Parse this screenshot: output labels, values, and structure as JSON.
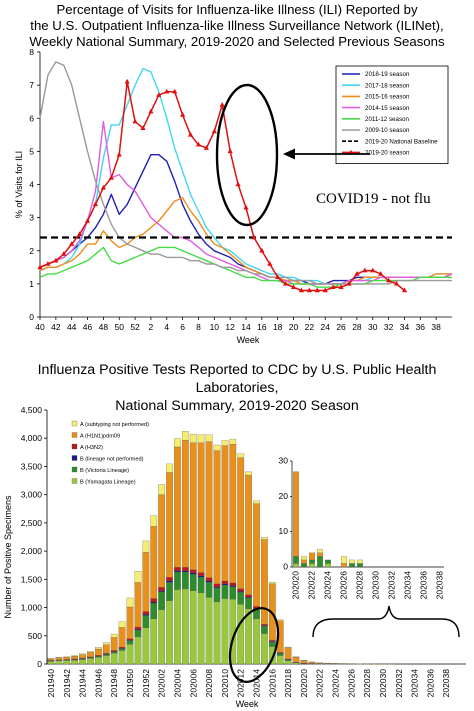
{
  "titles": {
    "top_lines": [
      "Percentage of Visits for Influenza-like Illness (ILI) Reported by",
      "the U.S. Outpatient Influenza-like Illness Surveillance Network (ILINet),",
      "Weekly National Summary, 2019-2020 and Selected Previous Seasons"
    ],
    "bottom_lines": [
      "Influenza Positive Tests Reported to CDC by U.S. Public Health Laboratories,",
      "National Summary, 2019-2020 Season"
    ]
  },
  "chart_data": [
    {
      "type": "line",
      "xlabel": "Week",
      "ylabel": "% of Visits for ILI",
      "ylim": [
        0,
        8
      ],
      "yticks": [
        0,
        1,
        2,
        3,
        4,
        5,
        6,
        7,
        8
      ],
      "x_tick_labels": [
        "40",
        "42",
        "44",
        "46",
        "48",
        "50",
        "52",
        "2",
        "4",
        "6",
        "8",
        "10",
        "12",
        "14",
        "16",
        "18",
        "20",
        "22",
        "24",
        "26",
        "28",
        "30",
        "32",
        "34",
        "36",
        "38"
      ],
      "grid": false,
      "legend_position": "top-right",
      "annotation": "COVID19 - not flu",
      "series": [
        {
          "name": "2018-19 season",
          "color": "#1f1fb4",
          "values": [
            1.5,
            1.6,
            1.7,
            1.8,
            2.0,
            2.2,
            2.4,
            2.7,
            3.1,
            3.7,
            3.1,
            3.4,
            3.9,
            4.4,
            4.9,
            4.9,
            4.7,
            4.1,
            3.4,
            2.9,
            2.5,
            2.2,
            2.0,
            1.9,
            1.8,
            1.6,
            1.5,
            1.4,
            1.3,
            1.2,
            1.2,
            1.1,
            1.1,
            1.1,
            1.0,
            1.0,
            1.0,
            1.1,
            1.1,
            1.1,
            1.2,
            1.2,
            1.2,
            1.2,
            1.2,
            1.2,
            1.2,
            1.2,
            1.2,
            1.2,
            1.2,
            1.2,
            1.3
          ]
        },
        {
          "name": "2017-18 season",
          "color": "#40d8f0",
          "values": [
            1.4,
            1.5,
            1.5,
            1.6,
            1.8,
            2.2,
            2.9,
            3.4,
            4.8,
            5.8,
            5.8,
            6.4,
            7.0,
            7.5,
            7.4,
            6.8,
            6.0,
            5.1,
            4.4,
            3.7,
            3.2,
            2.7,
            2.4,
            2.1,
            2.0,
            1.8,
            1.6,
            1.5,
            1.4,
            1.3,
            1.3,
            1.2,
            1.2,
            1.1,
            1.1,
            1.1,
            1.0,
            1.0,
            1.0,
            1.1,
            1.1,
            1.1,
            1.2,
            1.2,
            1.2,
            1.2,
            1.2,
            1.2,
            1.2,
            1.2,
            1.3,
            1.3,
            1.3
          ]
        },
        {
          "name": "2015-16 season",
          "color": "#f08c1c",
          "values": [
            1.4,
            1.5,
            1.5,
            1.6,
            1.7,
            1.9,
            2.2,
            2.2,
            2.6,
            2.3,
            2.1,
            2.2,
            2.4,
            2.5,
            2.7,
            2.9,
            3.2,
            3.5,
            3.6,
            3.2,
            2.9,
            2.5,
            2.2,
            2.1,
            1.9,
            1.7,
            1.5,
            1.4,
            1.3,
            1.2,
            1.2,
            1.1,
            1.1,
            1.0,
            1.0,
            1.0,
            1.0,
            1.0,
            1.0,
            1.1,
            1.1,
            1.2,
            1.2,
            1.2,
            1.2,
            1.2,
            1.2,
            1.2,
            1.2,
            1.2,
            1.3,
            1.3,
            1.3
          ]
        },
        {
          "name": "2014-15 season",
          "color": "#e05ce0",
          "values": [
            1.5,
            1.6,
            1.7,
            1.8,
            2.0,
            2.3,
            2.9,
            3.8,
            5.9,
            4.2,
            4.3,
            4.0,
            3.8,
            3.4,
            3.0,
            2.8,
            2.6,
            2.4,
            2.4,
            2.3,
            2.1,
            1.9,
            1.8,
            1.7,
            1.6,
            1.5,
            1.4,
            1.3,
            1.2,
            1.1,
            1.1,
            1.1,
            1.0,
            1.0,
            1.0,
            1.0,
            1.0,
            1.0,
            1.0,
            1.1,
            1.1,
            1.1,
            1.1,
            1.2,
            1.2,
            1.2,
            1.2,
            1.2,
            1.2,
            1.2,
            1.2,
            1.2,
            1.3
          ]
        },
        {
          "name": "2011-12 season",
          "color": "#44dd44",
          "values": [
            1.2,
            1.3,
            1.3,
            1.4,
            1.5,
            1.6,
            1.7,
            1.9,
            2.1,
            1.7,
            1.6,
            1.7,
            1.8,
            1.9,
            2.0,
            2.1,
            2.1,
            2.1,
            2.0,
            1.9,
            1.8,
            1.7,
            1.6,
            1.5,
            1.4,
            1.3,
            1.2,
            1.2,
            1.1,
            1.1,
            1.1,
            1.0,
            1.0,
            1.0,
            1.0,
            0.9,
            0.9,
            0.9,
            1.0,
            1.0,
            1.0,
            1.0,
            1.1,
            1.1,
            1.1,
            1.1,
            1.1,
            1.1,
            1.2,
            1.2,
            1.2,
            1.2,
            1.2
          ]
        },
        {
          "name": "2009-10 season",
          "color": "#999999",
          "values": [
            6.0,
            7.3,
            7.7,
            7.6,
            7.0,
            6.0,
            5.0,
            4.1,
            3.4,
            2.8,
            2.4,
            2.2,
            2.1,
            2.0,
            1.9,
            1.9,
            1.8,
            1.8,
            1.8,
            1.7,
            1.7,
            1.6,
            1.6,
            1.5,
            1.5,
            1.4,
            1.4,
            1.3,
            1.3,
            1.2,
            1.2,
            1.2,
            1.1,
            1.1,
            1.1,
            1.0,
            1.0,
            1.0,
            1.0,
            1.0,
            1.0,
            1.0,
            1.0,
            1.0,
            1.0,
            1.1,
            1.1,
            1.1,
            1.1,
            1.1,
            1.1,
            1.1,
            1.1
          ]
        },
        {
          "name": "2019-20 National Baseline",
          "color": "#000000",
          "dashed": true,
          "values": [
            2.4,
            2.4,
            2.4,
            2.4,
            2.4,
            2.4,
            2.4,
            2.4,
            2.4,
            2.4,
            2.4,
            2.4,
            2.4,
            2.4,
            2.4,
            2.4,
            2.4,
            2.4,
            2.4,
            2.4,
            2.4,
            2.4,
            2.4,
            2.4,
            2.4,
            2.4,
            2.4,
            2.4,
            2.4,
            2.4,
            2.4,
            2.4,
            2.4,
            2.4,
            2.4,
            2.4,
            2.4,
            2.4,
            2.4,
            2.4,
            2.4,
            2.4,
            2.4,
            2.4,
            2.4,
            2.4,
            2.4,
            2.4,
            2.4,
            2.4,
            2.4,
            2.4,
            2.4
          ]
        },
        {
          "name": "2019-20 season",
          "color": "#e01010",
          "markers": true,
          "values": [
            1.5,
            1.6,
            1.7,
            1.9,
            2.2,
            2.5,
            2.9,
            3.4,
            3.9,
            4.2,
            4.9,
            7.1,
            5.9,
            5.7,
            6.2,
            6.7,
            6.8,
            6.8,
            6.1,
            5.5,
            5.2,
            5.1,
            5.6,
            6.4,
            5.0,
            4.0,
            3.3,
            2.4,
            2.0,
            1.6,
            1.2,
            1.0,
            0.9,
            0.8,
            0.8,
            0.8,
            0.8,
            0.9,
            0.9,
            1.0,
            1.3,
            1.4,
            1.4,
            1.3,
            1.1,
            1.0,
            0.8
          ]
        }
      ]
    },
    {
      "type": "bar",
      "stacked": true,
      "xlabel": "Week",
      "ylabel": "Number of Positive Specimens",
      "ylim": [
        0,
        4500
      ],
      "yticks": [
        0,
        500,
        1000,
        1500,
        2000,
        2500,
        3000,
        3500,
        4000,
        4500
      ],
      "yticks_text": [
        "0",
        "500",
        "1,000",
        "1,500",
        "2,000",
        "2,500",
        "3,000",
        "3,500",
        "4,000",
        "4,500"
      ],
      "x_tick_labels": [
        "201940",
        "201942",
        "201944",
        "201946",
        "201948",
        "201950",
        "201952",
        "202002",
        "202004",
        "202006",
        "202008",
        "202010",
        "202012",
        "202014",
        "202016",
        "202018",
        "202020",
        "202022",
        "202024",
        "202026",
        "202028",
        "202030",
        "202032",
        "202034",
        "202036",
        "202038"
      ],
      "legend_position": "top-left",
      "series": [
        {
          "name": "B (Yamagata Lineage)",
          "color": "#9ac83c",
          "values": [
            50,
            60,
            65,
            70,
            80,
            100,
            120,
            150,
            190,
            240,
            350,
            480,
            640,
            800,
            960,
            1120,
            1320,
            1330,
            1300,
            1260,
            1180,
            1100,
            1160,
            1150,
            1060,
            980,
            800,
            540,
            310,
            150,
            60,
            20,
            10,
            5,
            4,
            3,
            2,
            2,
            2,
            1,
            1,
            0,
            0,
            0,
            0,
            0,
            0,
            0,
            0,
            0,
            0,
            0,
            0
          ]
        },
        {
          "name": "B (Victoria Lineage)",
          "color": "#2e8b2e",
          "values": [
            5,
            5,
            5,
            5,
            10,
            10,
            15,
            20,
            25,
            35,
            60,
            120,
            220,
            280,
            320,
            330,
            310,
            300,
            290,
            280,
            270,
            250,
            240,
            220,
            210,
            190,
            170,
            130,
            80,
            40,
            20,
            8,
            4,
            2,
            1,
            1,
            1,
            1,
            1,
            0,
            0,
            0,
            0,
            0,
            0,
            0,
            0,
            0,
            0,
            0,
            0,
            0,
            0
          ]
        },
        {
          "name": "B (lineage not performed)",
          "color": "#1a1a80",
          "values": [
            5,
            5,
            5,
            5,
            5,
            5,
            5,
            5,
            5,
            5,
            10,
            15,
            20,
            20,
            20,
            25,
            25,
            25,
            25,
            25,
            25,
            20,
            20,
            20,
            20,
            15,
            15,
            10,
            10,
            5,
            5,
            2,
            1,
            1,
            0,
            0,
            0,
            0,
            0,
            0,
            0,
            0,
            0,
            0,
            0,
            0,
            0,
            0,
            0,
            0,
            0,
            0,
            0
          ]
        },
        {
          "name": "A (H3N2)",
          "color": "#c01818",
          "values": [
            5,
            5,
            5,
            10,
            10,
            10,
            15,
            15,
            20,
            20,
            30,
            40,
            50,
            60,
            60,
            60,
            60,
            60,
            55,
            55,
            55,
            50,
            50,
            45,
            45,
            40,
            35,
            25,
            20,
            10,
            5,
            3,
            2,
            1,
            0,
            0,
            0,
            0,
            0,
            0,
            0,
            0,
            0,
            0,
            0,
            0,
            0,
            0,
            0,
            0,
            0,
            0,
            0
          ]
        },
        {
          "name": "A (H1N1)pdm09",
          "color": "#e8901c",
          "values": [
            25,
            35,
            40,
            50,
            60,
            80,
            110,
            150,
            230,
            350,
            560,
            790,
            1050,
            1280,
            1640,
            1860,
            2130,
            2250,
            2250,
            2300,
            2410,
            2360,
            2400,
            2460,
            2320,
            2120,
            1820,
            1500,
            1000,
            560,
            200,
            90,
            45,
            25,
            15,
            10,
            8,
            6,
            4,
            3,
            2,
            2,
            1,
            1,
            0,
            0,
            0,
            0,
            0,
            0,
            0,
            0,
            0
          ]
        },
        {
          "name": "A (subtyping not performed)",
          "color": "#f5ec70",
          "values": [
            10,
            10,
            10,
            10,
            20,
            20,
            30,
            40,
            60,
            100,
            160,
            200,
            200,
            190,
            180,
            150,
            150,
            160,
            150,
            140,
            120,
            100,
            90,
            90,
            70,
            60,
            50,
            40,
            30,
            20,
            10,
            7,
            5,
            3,
            2,
            2,
            1,
            1,
            1,
            1,
            0,
            0,
            0,
            0,
            0,
            0,
            0,
            0,
            0,
            0,
            0,
            0,
            0
          ]
        }
      ],
      "inset": {
        "ylim": [
          0,
          30
        ],
        "yticks": [
          0,
          10,
          20,
          30
        ],
        "x_tick_labels": [
          "202020",
          "202022",
          "202024",
          "202026",
          "202028",
          "202030",
          "202032",
          "202034",
          "202036",
          "202038"
        ],
        "series": [
          {
            "name": "B (Yamagata Lineage)",
            "color": "#9ac83c",
            "values": [
              1,
              0,
              1,
              0,
              1,
              0,
              0,
              0,
              0,
              0,
              0,
              0,
              0,
              0,
              0,
              0,
              0,
              0,
              0
            ]
          },
          {
            "name": "B (Victoria Lineage)",
            "color": "#2e8b2e",
            "values": [
              2,
              1,
              1,
              3,
              1,
              0,
              0,
              1,
              1,
              0,
              0,
              0,
              0,
              0,
              0,
              0,
              0,
              0,
              0
            ]
          },
          {
            "name": "A (H1N1)pdm09",
            "color": "#e8901c",
            "values": [
              24,
              1,
              2,
              1,
              0,
              0,
              1,
              0,
              0,
              0,
              0,
              0,
              0,
              0,
              0,
              0,
              0,
              0,
              0
            ]
          },
          {
            "name": "A (subtyping not performed)",
            "color": "#f5ec70",
            "values": [
              0,
              1,
              0,
              1,
              0,
              0,
              2,
              1,
              1,
              0,
              0,
              0,
              0,
              0,
              0,
              0,
              0,
              0,
              0
            ]
          }
        ]
      }
    }
  ]
}
